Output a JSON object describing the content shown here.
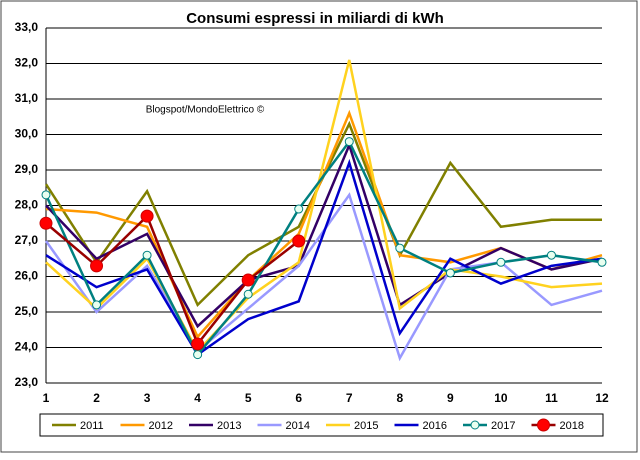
{
  "chart_data": {
    "type": "line",
    "title": "Consumi espressi in miliardi di kWh",
    "annotation": "Blogspot/MondoElettrico ©",
    "categories": [
      "1",
      "2",
      "3",
      "4",
      "5",
      "6",
      "7",
      "8",
      "9",
      "10",
      "11",
      "12"
    ],
    "ylim": [
      23,
      33
    ],
    "yticks": [
      {
        "value": 23,
        "label": "23,0"
      },
      {
        "value": 24,
        "label": "24,0"
      },
      {
        "value": 25,
        "label": "25,0"
      },
      {
        "value": 26,
        "label": "26,0"
      },
      {
        "value": 27,
        "label": "27,0"
      },
      {
        "value": 28,
        "label": "28,0"
      },
      {
        "value": 29,
        "label": "29,0"
      },
      {
        "value": 30,
        "label": "30,0"
      },
      {
        "value": 31,
        "label": "31,0"
      },
      {
        "value": 32,
        "label": "32,0"
      },
      {
        "value": 33,
        "label": "33,0"
      }
    ],
    "grid": true,
    "legend": "bottom",
    "series": [
      {
        "name": "2011",
        "color": "#808000",
        "values": [
          28.6,
          26.4,
          28.4,
          25.2,
          26.6,
          27.4,
          30.3,
          26.6,
          29.2,
          27.4,
          27.6,
          27.6
        ]
      },
      {
        "name": "2012",
        "color": "#ff9900",
        "values": [
          27.9,
          27.8,
          27.4,
          24.3,
          25.9,
          27.2,
          30.6,
          26.6,
          26.4,
          26.8,
          26.2,
          26.6
        ]
      },
      {
        "name": "2013",
        "color": "#330066",
        "values": [
          28.0,
          26.5,
          27.2,
          24.6,
          25.9,
          26.3,
          29.7,
          25.2,
          26.1,
          26.8,
          26.2,
          26.5
        ]
      },
      {
        "name": "2014",
        "color": "#9999ff",
        "values": [
          27.0,
          25.0,
          26.3,
          23.9,
          25.1,
          26.3,
          28.3,
          23.7,
          26.2,
          26.4,
          25.2,
          25.6
        ]
      },
      {
        "name": "2015",
        "color": "#ffd21f",
        "values": [
          26.4,
          25.1,
          26.5,
          23.9,
          25.4,
          26.4,
          32.1,
          25.1,
          26.2,
          26.0,
          25.7,
          25.8
        ]
      },
      {
        "name": "2016",
        "color": "#0000cc",
        "values": [
          26.6,
          25.7,
          26.2,
          23.8,
          24.8,
          25.3,
          29.2,
          24.4,
          26.5,
          25.8,
          26.3,
          26.5
        ]
      },
      {
        "name": "2017",
        "color": "#008080",
        "marker": "open-circle",
        "values": [
          28.3,
          25.2,
          26.6,
          23.8,
          25.5,
          27.9,
          29.8,
          26.8,
          26.1,
          26.4,
          26.6,
          26.4
        ]
      },
      {
        "name": "2018",
        "color": "#990000",
        "marker": "red-circle",
        "values": [
          27.5,
          26.3,
          27.7,
          24.1,
          25.9,
          27.0,
          null,
          null,
          null,
          null,
          null,
          null
        ]
      }
    ]
  }
}
